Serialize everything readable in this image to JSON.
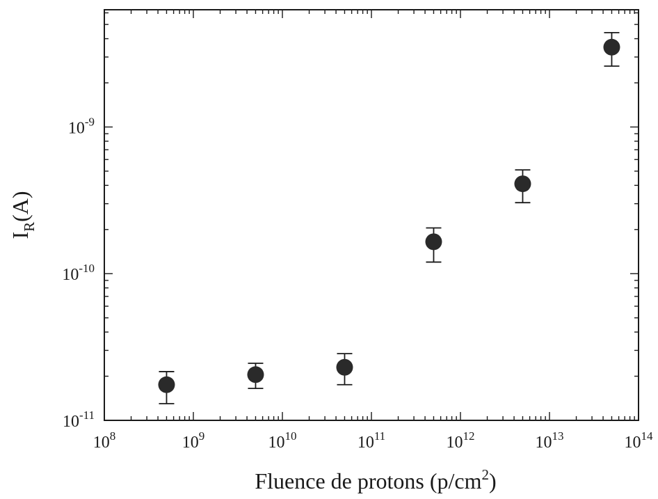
{
  "chart_data": {
    "type": "scatter",
    "title": "",
    "xlabel": "Fluence de protons (p/cm²)",
    "ylabel": "I_R(A)",
    "x_scale": "log",
    "y_scale": "log",
    "xlim": [
      100000000.0,
      100000000000000.0
    ],
    "ylim": [
      1e-11,
      6.3e-09
    ],
    "grid": false,
    "x_tick_labels": [
      {
        "base": "10",
        "exp": "8"
      },
      {
        "base": "10",
        "exp": "9"
      },
      {
        "base": "10",
        "exp": "10"
      },
      {
        "base": "10",
        "exp": "11"
      },
      {
        "base": "10",
        "exp": "12"
      },
      {
        "base": "10",
        "exp": "13"
      },
      {
        "base": "10",
        "exp": "14"
      }
    ],
    "y_tick_labels": [
      {
        "base": "10",
        "exp": "-11"
      },
      {
        "base": "10",
        "exp": "-10"
      },
      {
        "base": "10",
        "exp": "-9"
      }
    ],
    "series": [
      {
        "x": [
          500000000.0,
          5000000000.0,
          50000000000.0,
          500000000000.0,
          5000000000000.0,
          50000000000000.0
        ],
        "y": [
          1.75e-11,
          2.05e-11,
          2.3e-11,
          1.65e-10,
          4.1e-10,
          3.5e-09
        ],
        "y_err_low": [
          1.3e-11,
          1.65e-11,
          1.75e-11,
          1.2e-10,
          3.05e-10,
          2.6e-09
        ],
        "y_err_high": [
          2.15e-11,
          2.45e-11,
          2.85e-11,
          2.05e-10,
          5.1e-10,
          4.4e-09
        ]
      }
    ],
    "marker_color": "#2a2a2a"
  },
  "axes": {
    "xlabel_main": "Fluence de protons (p/cm",
    "xlabel_sup": "2",
    "xlabel_end": ")",
    "ylabel_main": "I",
    "ylabel_sub": "R",
    "ylabel_end": "(A)"
  }
}
